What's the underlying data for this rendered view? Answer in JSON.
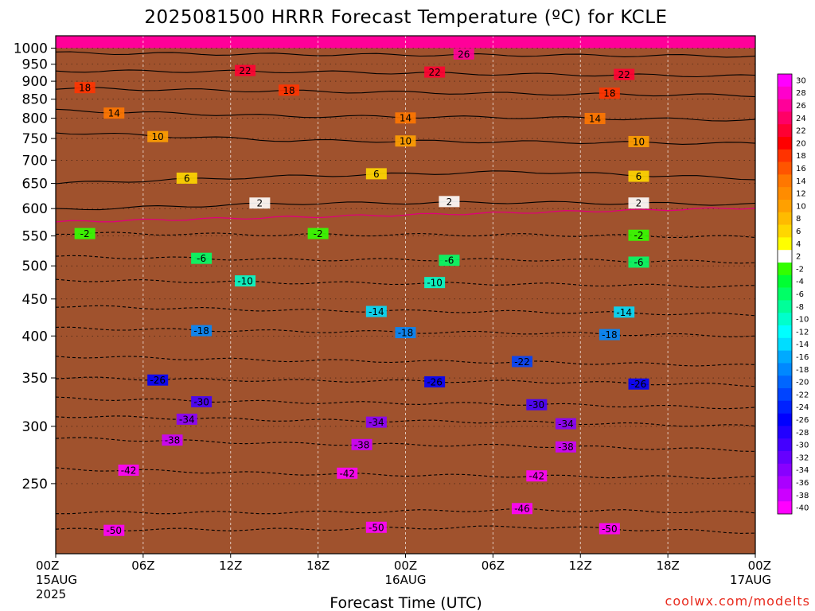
{
  "chart_data": {
    "type": "heatmap",
    "title": "2025081500 HRRR Forecast Temperature (ºC) for KCLE",
    "xlabel": "Forecast Time (UTC)",
    "ylabel": "",
    "credit": "coolwx.com/modelts",
    "x_ticks": [
      {
        "hours": 0,
        "label": "00Z",
        "sub1": "15AUG",
        "sub2": "2025"
      },
      {
        "hours": 6,
        "label": "06Z",
        "sub1": "",
        "sub2": ""
      },
      {
        "hours": 12,
        "label": "12Z",
        "sub1": "",
        "sub2": ""
      },
      {
        "hours": 18,
        "label": "18Z",
        "sub1": "",
        "sub2": ""
      },
      {
        "hours": 24,
        "label": "00Z",
        "sub1": "16AUG",
        "sub2": ""
      },
      {
        "hours": 30,
        "label": "06Z",
        "sub1": "",
        "sub2": ""
      },
      {
        "hours": 36,
        "label": "12Z",
        "sub1": "",
        "sub2": ""
      },
      {
        "hours": 42,
        "label": "18Z",
        "sub1": "",
        "sub2": ""
      },
      {
        "hours": 48,
        "label": "00Z",
        "sub1": "17AUG",
        "sub2": ""
      }
    ],
    "xlim_hours": [
      0,
      48
    ],
    "y_ticks": [
      250,
      300,
      350,
      400,
      450,
      500,
      550,
      600,
      650,
      700,
      750,
      800,
      850,
      900,
      950,
      1000
    ],
    "ylim_hPa": [
      1040,
      200
    ],
    "y_scale": "log-pressure",
    "ground_level_hPa": 1000,
    "ground_color": "#a0522d",
    "colorbar": {
      "placement": "right",
      "bins": [
        {
          "label": "30",
          "color": "#ff00ff"
        },
        {
          "label": "28",
          "color": "#ff00cc"
        },
        {
          "label": "26",
          "color": "#ff0099"
        },
        {
          "label": "24",
          "color": "#ff0066"
        },
        {
          "label": "22",
          "color": "#ff0033"
        },
        {
          "label": "20",
          "color": "#ff0000"
        },
        {
          "label": "18",
          "color": "#ff3300"
        },
        {
          "label": "16",
          "color": "#ff5500"
        },
        {
          "label": "14",
          "color": "#ff7700"
        },
        {
          "label": "12",
          "color": "#ff8c00"
        },
        {
          "label": "10",
          "color": "#ffa000"
        },
        {
          "label": "8",
          "color": "#ffbb00"
        },
        {
          "label": "6",
          "color": "#ffd700"
        },
        {
          "label": "4",
          "color": "#ffff00"
        },
        {
          "label": "2",
          "color": "#ffffff"
        },
        {
          "label": "-2",
          "color": "#33ff00"
        },
        {
          "label": "-4",
          "color": "#00ff33"
        },
        {
          "label": "-6",
          "color": "#00ff66"
        },
        {
          "label": "-8",
          "color": "#00ff99"
        },
        {
          "label": "-10",
          "color": "#00ffcc"
        },
        {
          "label": "-12",
          "color": "#00ffff"
        },
        {
          "label": "-14",
          "color": "#00ddff"
        },
        {
          "label": "-16",
          "color": "#00aaff"
        },
        {
          "label": "-18",
          "color": "#0088ff"
        },
        {
          "label": "-20",
          "color": "#0066ff"
        },
        {
          "label": "-22",
          "color": "#0044ff"
        },
        {
          "label": "-24",
          "color": "#0022ff"
        },
        {
          "label": "-26",
          "color": "#0000ff"
        },
        {
          "label": "-28",
          "color": "#2200ff"
        },
        {
          "label": "-30",
          "color": "#4400ff"
        },
        {
          "label": "-32",
          "color": "#6600ff"
        },
        {
          "label": "-34",
          "color": "#8800ff"
        },
        {
          "label": "-36",
          "color": "#aa00ff"
        },
        {
          "label": "-38",
          "color": "#cc00ff"
        },
        {
          "label": "-40",
          "color": "#ff00ff"
        }
      ]
    },
    "isotherm_profile": {
      "pressure_hPa": [
        200,
        250,
        300,
        350,
        400,
        450,
        500,
        550,
        600,
        650,
        700,
        750,
        800,
        850,
        900,
        950,
        1000
      ],
      "temp_C": [
        -55,
        -46,
        -35,
        -25.5,
        -18,
        -12,
        -8,
        -4,
        2,
        6,
        9,
        11,
        14,
        17,
        21,
        24,
        27
      ]
    },
    "contours": [
      {
        "label": "-50",
        "p": [
          216,
          216,
          218,
          214
        ],
        "labels_at": [
          4,
          22,
          38
        ]
      },
      {
        "label": "-46",
        "p": [
          228,
          228,
          230,
          228
        ],
        "labels_at": [
          32
        ]
      },
      {
        "label": "-42",
        "p": [
          262,
          258,
          256,
          255
        ],
        "labels_at": [
          5,
          20,
          33
        ]
      },
      {
        "label": "-38",
        "p": [
          289,
          284,
          282,
          278
        ],
        "labels_at": [
          8,
          21,
          35
        ]
      },
      {
        "label": "-34",
        "p": [
          310,
          306,
          304,
          300
        ],
        "labels_at": [
          9,
          22,
          35
        ]
      },
      {
        "label": "-30",
        "p": [
          328,
          324,
          322,
          318
        ],
        "labels_at": [
          10,
          33
        ]
      },
      {
        "label": "-26",
        "p": [
          350,
          347,
          346,
          342
        ],
        "labels_at": [
          7,
          26,
          40
        ]
      },
      {
        "label": "-22",
        "p": [
          375,
          370,
          368,
          364
        ],
        "labels_at": [
          32
        ]
      },
      {
        "label": "-18",
        "p": [
          410,
          406,
          404,
          400
        ],
        "labels_at": [
          10,
          24,
          38
        ]
      },
      {
        "label": "-14",
        "p": [
          440,
          434,
          432,
          428
        ],
        "labels_at": [
          22,
          39
        ]
      },
      {
        "label": "-10",
        "p": [
          478,
          474,
          472,
          468
        ],
        "labels_at": [
          13,
          26
        ]
      },
      {
        "label": "-6",
        "p": [
          515,
          510,
          510,
          506
        ],
        "labels_at": [
          10,
          27,
          40
        ]
      },
      {
        "label": "-2",
        "p": [
          555,
          552,
          552,
          548
        ],
        "labels_at": [
          2,
          18,
          40
        ]
      },
      {
        "label": "2",
        "p": [
          598,
          610,
          612,
          608
        ],
        "labels_at": [
          14,
          27,
          40
        ]
      },
      {
        "label": "6",
        "p": [
          650,
          665,
          675,
          660
        ],
        "labels_at": [
          9,
          22,
          40
        ]
      },
      {
        "label": "10",
        "p": [
          765,
          745,
          742,
          738
        ],
        "labels_at": [
          7,
          24,
          40
        ]
      },
      {
        "label": "14",
        "p": [
          820,
          805,
          802,
          795
        ],
        "labels_at": [
          4,
          24,
          37
        ]
      },
      {
        "label": "18",
        "p": [
          880,
          872,
          865,
          860
        ],
        "labels_at": [
          2,
          16,
          38
        ]
      },
      {
        "label": "22",
        "p": [
          930,
          928,
          920,
          915
        ],
        "labels_at": [
          13,
          26,
          39
        ]
      },
      {
        "label": "26",
        "p": [
          985,
          980,
          978,
          975
        ],
        "labels_at": [
          28
        ]
      }
    ]
  }
}
